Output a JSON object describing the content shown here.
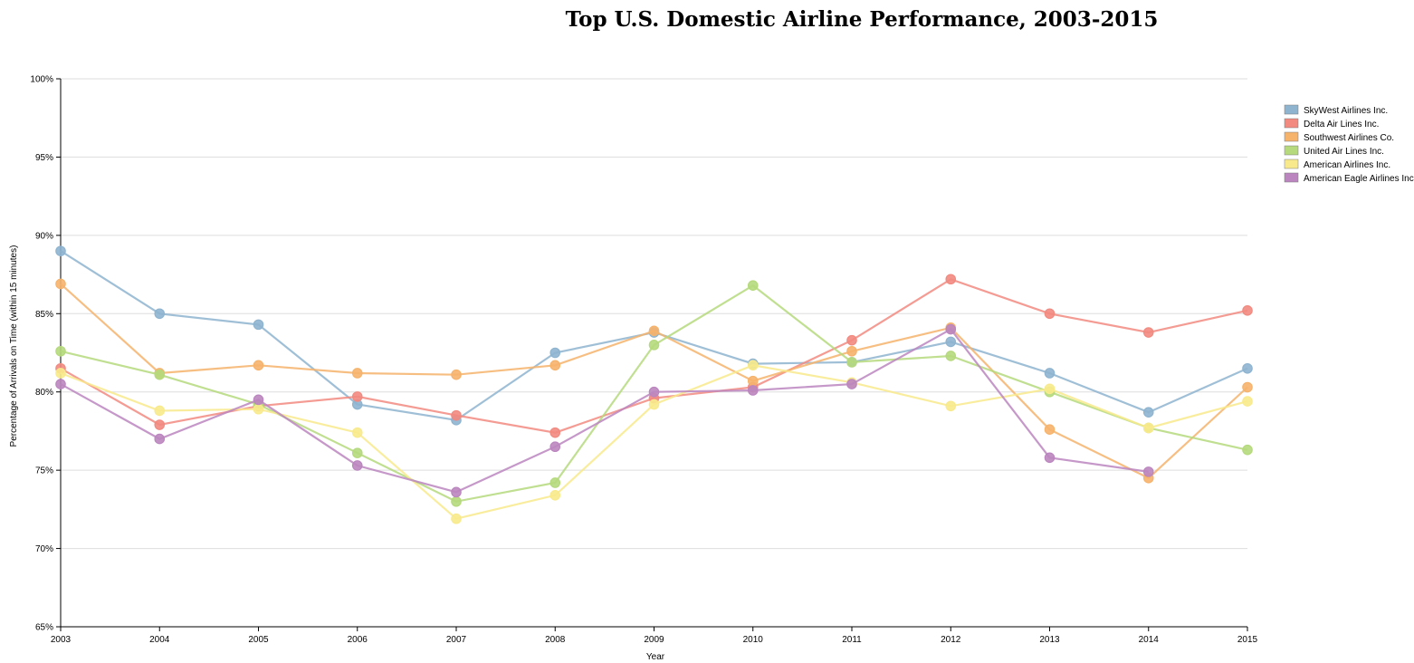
{
  "chart_data": {
    "type": "line",
    "title": "Top U.S. Domestic Airline Performance, 2003-2015",
    "xlabel": "Year",
    "ylabel": "Percentage of Arrivals on Time (within 15 minutes)",
    "x": [
      2003,
      2004,
      2005,
      2006,
      2007,
      2008,
      2009,
      2010,
      2011,
      2012,
      2013,
      2014,
      2015
    ],
    "ylim": [
      0.65,
      1.0
    ],
    "yticks": [
      "65%",
      "70%",
      "75%",
      "80%",
      "85%",
      "90%",
      "95%",
      "100%"
    ],
    "grid": true,
    "legend_position": "right",
    "series": [
      {
        "name": "SkyWest Airlines Inc.",
        "color": "#8eb4d0",
        "values": [
          0.89,
          0.85,
          0.843,
          0.792,
          0.782,
          0.825,
          0.838,
          0.818,
          0.819,
          0.832,
          0.812,
          0.787,
          0.815
        ]
      },
      {
        "name": "Delta Air Lines Inc.",
        "color": "#f28a80",
        "values": [
          0.815,
          0.779,
          0.791,
          0.797,
          0.785,
          0.774,
          0.796,
          0.803,
          0.833,
          0.872,
          0.85,
          0.838,
          0.852
        ]
      },
      {
        "name": "Southwest Airlines Co.",
        "color": "#f6b36c",
        "values": [
          0.869,
          0.812,
          0.817,
          0.812,
          0.811,
          0.817,
          0.839,
          0.807,
          0.826,
          0.841,
          0.776,
          0.745,
          0.803
        ]
      },
      {
        "name": "United Air Lines Inc.",
        "color": "#b5d97c",
        "values": [
          0.826,
          0.811,
          0.792,
          0.761,
          0.73,
          0.742,
          0.83,
          0.868,
          0.819,
          0.823,
          0.8,
          0.777,
          0.763
        ]
      },
      {
        "name": "American Airlines Inc.",
        "color": "#f8ea8c",
        "values": [
          0.812,
          0.788,
          0.789,
          0.774,
          0.719,
          0.734,
          0.792,
          0.817,
          0.806,
          0.791,
          0.802,
          0.777,
          0.794
        ]
      },
      {
        "name": "American Eagle Airlines Inc.",
        "color": "#bb86bf",
        "values": [
          0.805,
          0.77,
          0.795,
          0.753,
          0.736,
          0.765,
          0.8,
          0.801,
          0.805,
          0.84,
          0.758,
          0.749,
          null
        ]
      }
    ]
  }
}
